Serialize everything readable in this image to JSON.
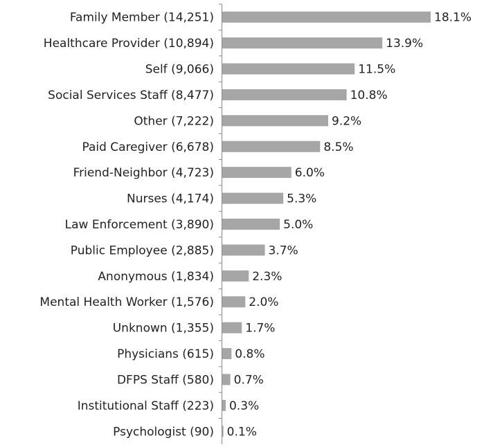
{
  "chart_data": {
    "type": "bar",
    "orientation": "horizontal",
    "color": "#a6a6a6",
    "categories": [
      "Family Member (14,251)",
      "Healthcare Provider (10,894)",
      "Self (9,066)",
      "Social Services Staff (8,477)",
      "Other (7,222)",
      "Paid Caregiver (6,678)",
      "Friend-Neighbor (4,723)",
      "Nurses (4,174)",
      "Law Enforcement (3,890)",
      "Public Employee (2,885)",
      "Anonymous (1,834)",
      "Mental Health Worker (1,576)",
      "Unknown (1,355)",
      "Physicians (615)",
      "DFPS Staff (580)",
      "Institutional Staff (223)",
      "Psychologist (90)"
    ],
    "values": [
      18.1,
      13.9,
      11.5,
      10.8,
      9.2,
      8.5,
      6.0,
      5.3,
      5.0,
      3.7,
      2.3,
      2.0,
      1.7,
      0.8,
      0.7,
      0.3,
      0.1
    ],
    "value_labels": [
      "18.1%",
      "13.9%",
      "11.5%",
      "10.8%",
      "9.2%",
      "8.5%",
      "6.0%",
      "5.3%",
      "5.0%",
      "3.7%",
      "2.3%",
      "2.0%",
      "1.7%",
      "0.8%",
      "0.7%",
      "0.3%",
      "0.1%"
    ]
  }
}
